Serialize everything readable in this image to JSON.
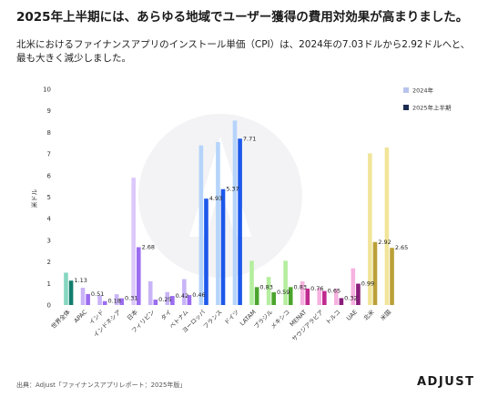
{
  "page": {
    "title": "2025年上半期には、あらゆる地域でユーザー獲得の費用対効果が高まりました。",
    "subtitle": "北米におけるファイナンスアプリのインストール単価（CPI）は、2024年の7.03ドルから2.92ドルへと、最も大きく減少しました。",
    "source": "出典：Adjust「ファイナンスアプリレポート：2025年版」",
    "brand": "ADJUST"
  },
  "chart_data": {
    "type": "bar",
    "ylabel": "米ドル",
    "ylim": [
      0,
      10
    ],
    "yticks": [
      0,
      1,
      2,
      3,
      4,
      5,
      6,
      7,
      8,
      9,
      10
    ],
    "legend_position": "top-right",
    "categories": [
      "世界全体",
      "APAC",
      "インド",
      "インドネシア",
      "日本",
      "フィリピン",
      "タイ",
      "ベトナム",
      "ヨーロッパ",
      "フランス",
      "ドイツ",
      "LATAM",
      "ブラジル",
      "メキシコ",
      "MENAT",
      "サウジアラビア",
      "トルコ",
      "UAE",
      "北米",
      "米国"
    ],
    "series": [
      {
        "name": "2024年",
        "values": [
          1.5,
          0.8,
          0.45,
          0.5,
          5.9,
          1.1,
          0.6,
          1.2,
          7.4,
          7.55,
          8.55,
          2.05,
          1.3,
          2.05,
          1.1,
          0.8,
          0.75,
          1.7,
          7.03,
          7.3
        ]
      },
      {
        "name": "2025年上半期",
        "values": [
          1.13,
          0.51,
          0.18,
          0.31,
          2.68,
          0.25,
          0.42,
          0.46,
          4.93,
          5.37,
          7.71,
          0.83,
          0.59,
          0.83,
          0.76,
          0.65,
          0.32,
          0.99,
          2.92,
          2.65
        ]
      }
    ],
    "data_labels": [
      "1.13",
      "0.51",
      "0.18",
      "0.31",
      "2.68",
      "0.25",
      "0.42",
      "0.46",
      "4.93",
      "5.37",
      "7.71",
      "0.83",
      "0.59",
      "0.83",
      "0.76",
      "0.65",
      "0.32",
      "0.99",
      "2.92",
      "2.65"
    ],
    "colors": {
      "light": [
        "#86d6c0",
        "#c9b4f7",
        "#c9b4f7",
        "#c9b4f7",
        "#dcc8fa",
        "#c9b4f7",
        "#c9b4f7",
        "#c9b4f7",
        "#b6d4fb",
        "#b6d4fb",
        "#b6d4fb",
        "#b4ee9e",
        "#b4ee9e",
        "#b4ee9e",
        "#f6b2e1",
        "#f6b2e1",
        "#f6b2e1",
        "#f6b2e1",
        "#f1e59a",
        "#f1e59a"
      ],
      "dark": [
        "#127d6c",
        "#9b6cf0",
        "#9b6cf0",
        "#9b6cf0",
        "#9b6cf0",
        "#9b6cf0",
        "#9b6cf0",
        "#9b6cf0",
        "#1d58ea",
        "#1d58ea",
        "#1d58ea",
        "#4aa52c",
        "#4aa52c",
        "#4aa52c",
        "#c02a8f",
        "#c02a8f",
        "#8a1c7b",
        "#8a1c7b",
        "#bba036",
        "#bba036"
      ],
      "legend_light": "#b9c3ee",
      "legend_dark": "#1c2b52"
    }
  }
}
